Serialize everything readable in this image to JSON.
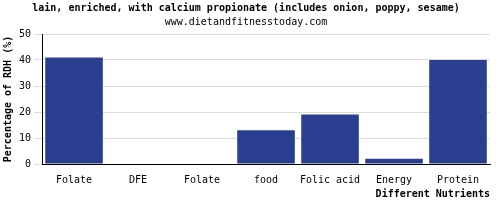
{
  "chart_data": {
    "type": "bar",
    "title": "lain, enriched, with calcium propionate (includes onion, poppy, sesame)",
    "subtitle": "www.dietandfitnesstoday.com",
    "x_label": "Different Nutrients",
    "y_label": "Percentage of RDH (%)",
    "categories": [
      "Folate",
      "DFE",
      "Folate",
      "food",
      "Folic acid",
      "Energy",
      "Protein"
    ],
    "values": [
      41,
      0,
      0,
      13,
      19,
      2,
      40
    ],
    "color": "#2a3f8f",
    "ylim": [
      0,
      50
    ],
    "yticks": [
      0,
      10,
      20,
      30,
      40,
      50
    ],
    "grid": true
  }
}
